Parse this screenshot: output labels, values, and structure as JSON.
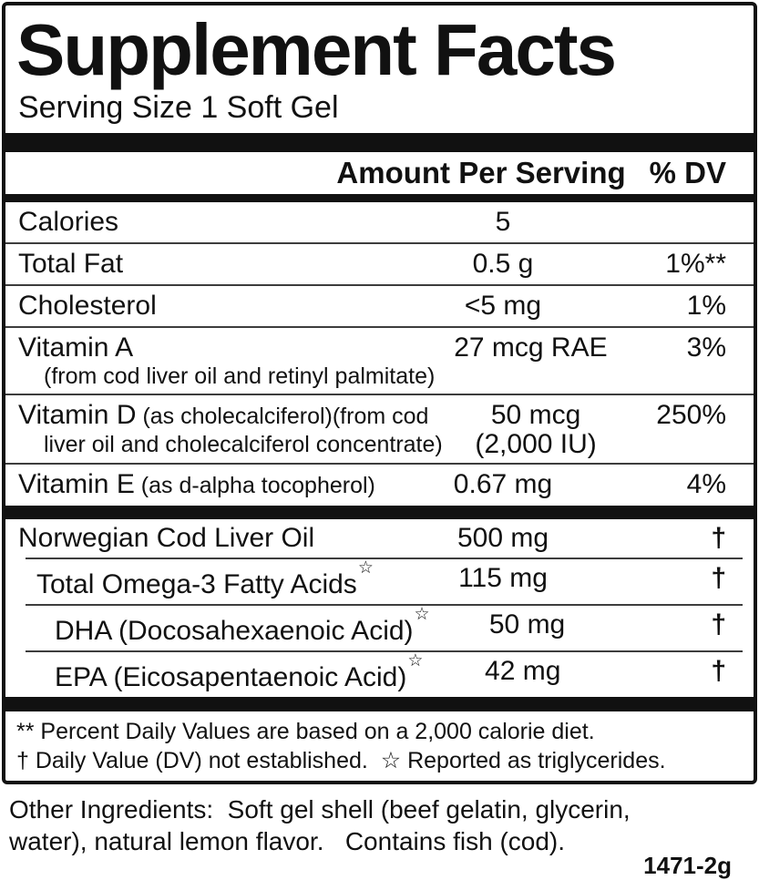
{
  "colors": {
    "text": "#111111",
    "divider": "#111111",
    "background": "#ffffff"
  },
  "label": {
    "title": "Supplement Facts",
    "serving_size": "Serving Size 1 Soft Gel",
    "header": {
      "amount_label": "Amount Per Serving",
      "dv_label": "% DV"
    },
    "star_glyph": "☆",
    "rows_main": [
      {
        "name": "Calories",
        "amount": "5",
        "dv": ""
      },
      {
        "name": "Total Fat",
        "amount": "0.5 g",
        "dv": "1%**"
      },
      {
        "name": "Cholesterol",
        "amount": "<5 mg",
        "dv": "1%"
      },
      {
        "name": "Vitamin A",
        "sub": "(from cod liver oil and retinyl palmitate)",
        "amount": "27 mcg RAE",
        "dv": "3%"
      },
      {
        "name": "Vitamin D",
        "detail": "(as cholecalciferol)(from cod",
        "sub": "liver oil and cholecalciferol concentrate)",
        "amount": "50 mcg",
        "amount2": "(2,000 IU)",
        "dv": "250%"
      },
      {
        "name": "Vitamin E",
        "detail": "(as d-alpha tocopherol)",
        "amount": "0.67 mg",
        "dv": "4%"
      }
    ],
    "rows_oils": [
      {
        "name": "Norwegian Cod Liver Oil",
        "amount": "500 mg",
        "dv": "†"
      },
      {
        "name": "Total Omega-3 Fatty Acids",
        "star": true,
        "amount": "115 mg",
        "dv": "†",
        "indent": 1
      },
      {
        "name": "DHA (Docosahexaenoic Acid)",
        "star": true,
        "amount": "50 mg",
        "dv": "†",
        "indent": 2
      },
      {
        "name": "EPA (Eicosapentaenoic Acid)",
        "star": true,
        "amount": "42 mg",
        "dv": "†",
        "indent": 2
      }
    ],
    "footnotes": [
      "** Percent Daily Values are based on a 2,000 calorie diet.",
      "† Daily Value (DV) not established.  ☆ Reported as triglycerides."
    ],
    "other_ingredients": {
      "line1": "Other Ingredients:  Soft gel shell (beef gelatin, glycerin,",
      "line2": "water), natural lemon flavor.   Contains fish (cod)."
    },
    "product_code": "1471-2g"
  }
}
